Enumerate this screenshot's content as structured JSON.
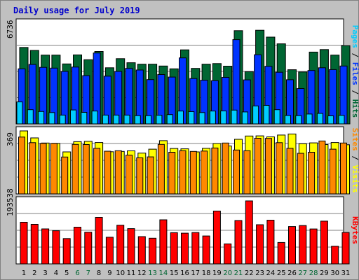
{
  "title": "Daily usage for July 2019",
  "colors": {
    "background": "#c0c0c0",
    "plot_bg": "#ffffff",
    "title": "#0000cc",
    "hits": "#006633",
    "files": "#0033ff",
    "pages": "#00ccff",
    "visits": "#ffff00",
    "sites": "#ff8800",
    "kbytes": "#ff0000",
    "weekend_day": "#006633",
    "weekday": "#000000"
  },
  "legend": {
    "top": [
      {
        "text": "Pages",
        "color": "#00ccff"
      },
      {
        "text": "Files",
        "color": "#0033ff"
      },
      {
        "text": "Hits",
        "color": "#006633"
      }
    ],
    "mid": [
      {
        "text": "Sites",
        "color": "#ff8800"
      },
      {
        "text": "Visits",
        "color": "#ffff00"
      }
    ],
    "bottom": [
      {
        "text": "KBytes",
        "color": "#ff0000"
      }
    ]
  },
  "chart_data": [
    {
      "type": "bar",
      "panel": "requests",
      "y_label": "6736",
      "ylim": [
        0,
        6736
      ],
      "categories": [
        "1",
        "2",
        "3",
        "4",
        "5",
        "6",
        "7",
        "8",
        "9",
        "10",
        "11",
        "12",
        "13",
        "14",
        "15",
        "16",
        "17",
        "18",
        "19",
        "20",
        "21",
        "22",
        "23",
        "24",
        "25",
        "26",
        "27",
        "28",
        "29",
        "30",
        "31"
      ],
      "series": [
        {
          "name": "Hits",
          "values": [
            5110,
            4910,
            4600,
            4600,
            4010,
            4610,
            4290,
            4840,
            3750,
            4360,
            4090,
            3990,
            3990,
            3870,
            3680,
            4950,
            3710,
            3990,
            4030,
            3860,
            6230,
            3490,
            6260,
            5800,
            5350,
            3620,
            3470,
            4800,
            4970,
            4600,
            5230
          ]
        },
        {
          "name": "Files",
          "values": [
            3680,
            3970,
            3780,
            3730,
            3510,
            3800,
            3230,
            4740,
            3190,
            3510,
            3710,
            3600,
            2960,
            3300,
            3130,
            4410,
            3030,
            2920,
            2890,
            3110,
            5630,
            2940,
            4620,
            3850,
            3450,
            2950,
            2360,
            3570,
            3750,
            3630,
            3870
          ]
        },
        {
          "name": "Pages",
          "values": [
            1470,
            950,
            830,
            760,
            590,
            930,
            770,
            860,
            590,
            590,
            590,
            550,
            550,
            580,
            620,
            860,
            820,
            760,
            860,
            870,
            920,
            800,
            1200,
            1240,
            950,
            560,
            550,
            660,
            700,
            540,
            570
          ]
        }
      ]
    },
    {
      "type": "bar",
      "panel": "visitors",
      "y_label": "369",
      "ylim": [
        0,
        369
      ],
      "categories": [
        "1",
        "2",
        "3",
        "4",
        "5",
        "6",
        "7",
        "8",
        "9",
        "10",
        "11",
        "12",
        "13",
        "14",
        "15",
        "16",
        "17",
        "18",
        "19",
        "20",
        "21",
        "22",
        "23",
        "24",
        "25",
        "26",
        "27",
        "28",
        "29",
        "30",
        "31"
      ],
      "series": [
        {
          "name": "Visits",
          "values": [
            369,
            328,
            298,
            296,
            246,
            306,
            308,
            301,
            247,
            249,
            252,
            239,
            262,
            312,
            266,
            264,
            246,
            267,
            295,
            281,
            320,
            339,
            340,
            334,
            345,
            351,
            294,
            299,
            289,
            301,
            288
          ]
        },
        {
          "name": "Sites",
          "values": [
            333,
            300,
            296,
            296,
            216,
            290,
            289,
            267,
            250,
            253,
            227,
            211,
            217,
            290,
            244,
            253,
            249,
            251,
            269,
            298,
            257,
            253,
            326,
            325,
            300,
            267,
            238,
            244,
            310,
            262,
            298
          ]
        }
      ]
    },
    {
      "type": "bar",
      "panel": "traffic",
      "y_label": "193538",
      "ylim": [
        0,
        193538
      ],
      "categories": [
        "1",
        "2",
        "3",
        "4",
        "5",
        "6",
        "7",
        "8",
        "9",
        "10",
        "11",
        "12",
        "13",
        "14",
        "15",
        "16",
        "17",
        "18",
        "19",
        "20",
        "21",
        "22",
        "23",
        "24",
        "25",
        "26",
        "27",
        "28",
        "29",
        "30",
        "31"
      ],
      "series": [
        {
          "name": "KBytes",
          "values": [
            127900,
            121400,
            107600,
            101900,
            77900,
            112900,
            97400,
            142900,
            81900,
            118900,
            108400,
            83900,
            78900,
            135400,
            95900,
            94400,
            96400,
            85900,
            162400,
            61400,
            133400,
            193538,
            120400,
            134400,
            65900,
            114900,
            117900,
            107400,
            131400,
            54400,
            96500
          ]
        }
      ]
    }
  ],
  "x_day_colors": [
    "#000000",
    "#000000",
    "#000000",
    "#000000",
    "#000000",
    "#006633",
    "#006633",
    "#000000",
    "#000000",
    "#000000",
    "#000000",
    "#000000",
    "#006633",
    "#006633",
    "#000000",
    "#000000",
    "#000000",
    "#000000",
    "#000000",
    "#006633",
    "#006633",
    "#000000",
    "#000000",
    "#000000",
    "#000000",
    "#000000",
    "#006633",
    "#006633",
    "#000000",
    "#000000",
    "#000000"
  ]
}
